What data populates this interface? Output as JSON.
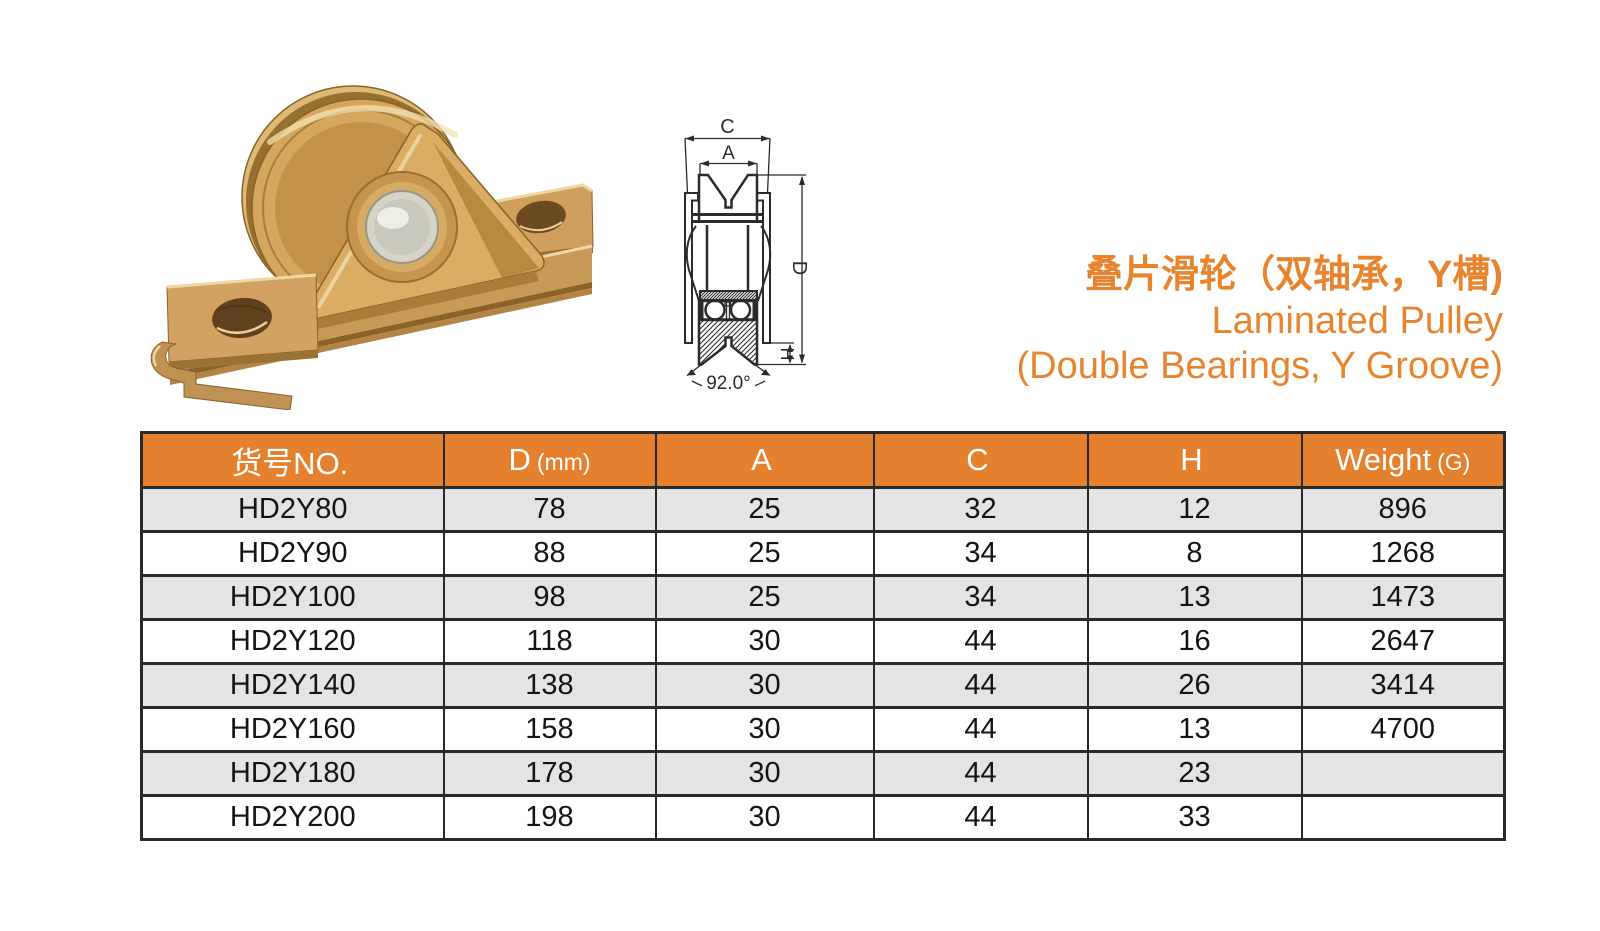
{
  "title": {
    "zh": "叠片滑轮（双轴承，Y槽)",
    "en_line1": "Laminated Pulley",
    "en_line2": "(Double Bearings, Y Groove)",
    "color": "#e8842e"
  },
  "diagram": {
    "labels": {
      "outer_width": "C",
      "inner_width": "A",
      "diameter": "D",
      "groove_height": "H",
      "groove_angle": "92.0°"
    },
    "line_color": "#2b2b2b"
  },
  "photo": {
    "description": "gold laminated pulley with double bearings and mounting bracket",
    "gold_color": "#cf9f5d",
    "axle_color": "#d6d4c8"
  },
  "table": {
    "header_bg": "#e5802e",
    "stripe_bg": "#e4e4e4",
    "border_color": "#282828",
    "headers": [
      {
        "label": "货号NO.",
        "unit": ""
      },
      {
        "label": "D",
        "unit": "(mm)"
      },
      {
        "label": "A",
        "unit": ""
      },
      {
        "label": "C",
        "unit": ""
      },
      {
        "label": "H",
        "unit": ""
      },
      {
        "label": "Weight",
        "unit": "(G)"
      }
    ],
    "rows": [
      [
        "HD2Y80",
        "78",
        "25",
        "32",
        "12",
        "896"
      ],
      [
        "HD2Y90",
        "88",
        "25",
        "34",
        "8",
        "1268"
      ],
      [
        "HD2Y100",
        "98",
        "25",
        "34",
        "13",
        "1473"
      ],
      [
        "HD2Y120",
        "118",
        "30",
        "44",
        "16",
        "2647"
      ],
      [
        "HD2Y140",
        "138",
        "30",
        "44",
        "26",
        "3414"
      ],
      [
        "HD2Y160",
        "158",
        "30",
        "44",
        "13",
        "4700"
      ],
      [
        "HD2Y180",
        "178",
        "30",
        "44",
        "23",
        ""
      ],
      [
        "HD2Y200",
        "198",
        "30",
        "44",
        "33",
        ""
      ]
    ]
  }
}
